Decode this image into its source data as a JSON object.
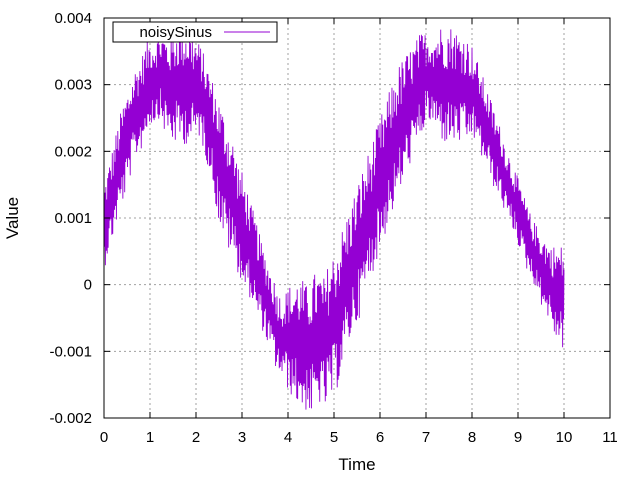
{
  "chart_data": {
    "type": "line",
    "title": "",
    "xlabel": "Time",
    "ylabel": "Value",
    "xlim": [
      0,
      11
    ],
    "ylim": [
      -0.002,
      0.004
    ],
    "x_ticks": [
      0,
      1,
      2,
      3,
      4,
      5,
      6,
      7,
      8,
      9,
      10,
      11
    ],
    "x_tick_labels": [
      "0",
      "1",
      "2",
      "3",
      "4",
      "5",
      "6",
      "7",
      "8",
      "9",
      "10",
      "11"
    ],
    "y_ticks": [
      -0.002,
      -0.001,
      0,
      0.001,
      0.002,
      0.003,
      0.004
    ],
    "y_tick_labels": [
      "-0.002",
      "-0.001",
      "0",
      "0.001",
      "0.002",
      "0.003",
      "0.004"
    ],
    "grid": true,
    "legend": {
      "position": "top-left",
      "entries": [
        "noisySinus"
      ]
    },
    "colors": {
      "series": "#9400d3",
      "grid": "#a0a0a0",
      "axis": "#000000"
    },
    "series": [
      {
        "name": "noisySinus",
        "x": [
          0.0,
          0.1,
          0.2,
          0.3,
          0.4,
          0.5,
          0.6,
          0.7,
          0.8,
          0.9,
          1.0,
          1.1,
          1.2,
          1.3,
          1.4,
          1.5,
          1.6,
          1.7,
          1.8,
          1.9,
          2.0,
          2.1,
          2.2,
          2.3,
          2.4,
          2.5,
          2.6,
          2.7,
          2.8,
          2.9,
          3.0,
          3.1,
          3.2,
          3.3,
          3.4,
          3.5,
          3.6,
          3.7,
          3.8,
          3.9,
          4.0,
          4.1,
          4.2,
          4.3,
          4.4,
          4.5,
          4.6,
          4.7,
          4.8,
          4.9,
          5.0,
          5.1,
          5.2,
          5.3,
          5.4,
          5.5,
          5.6,
          5.7,
          5.8,
          5.9,
          6.0,
          6.1,
          6.2,
          6.3,
          6.4,
          6.5,
          6.6,
          6.7,
          6.8,
          6.9,
          7.0,
          7.1,
          7.2,
          7.3,
          7.4,
          7.5,
          7.6,
          7.7,
          7.8,
          7.9,
          8.0,
          8.1,
          8.2,
          8.3,
          8.4,
          8.5,
          8.6,
          8.7,
          8.8,
          8.9,
          9.0,
          9.1,
          9.2,
          9.3,
          9.4,
          9.5,
          9.6,
          9.7,
          9.8,
          9.9,
          10.0
        ],
        "min": [
          0.0002,
          0.0005,
          0.0007,
          0.001,
          0.0012,
          0.0014,
          0.0017,
          0.0019,
          0.002,
          0.0022,
          0.0024,
          0.0024,
          0.0025,
          0.0023,
          0.0022,
          0.0021,
          0.0021,
          0.0021,
          0.0021,
          0.0021,
          0.0022,
          0.0022,
          0.0019,
          0.0017,
          0.0013,
          0.0009,
          0.0007,
          0.0005,
          0.0004,
          0.0002,
          0.0,
          -0.0002,
          -0.0002,
          -0.0005,
          -0.0006,
          -0.0008,
          -0.001,
          -0.0012,
          -0.0014,
          -0.0014,
          -0.0016,
          -0.0017,
          -0.0018,
          -0.0019,
          -0.0019,
          -0.002,
          -0.0019,
          -0.0018,
          -0.0019,
          -0.0018,
          -0.0017,
          -0.0015,
          -0.0012,
          -0.001,
          -0.0007,
          -0.0006,
          -0.0004,
          -0.0001,
          0.0001,
          0.0003,
          0.0005,
          0.0007,
          0.001,
          0.0011,
          0.0013,
          0.0015,
          0.0017,
          0.0019,
          0.002,
          0.0022,
          0.0024,
          0.0024,
          0.0023,
          0.0022,
          0.0021,
          0.0021,
          0.0021,
          0.0021,
          0.0021,
          0.0021,
          0.0022,
          0.0021,
          0.0019,
          0.0018,
          0.0016,
          0.0014,
          0.0013,
          0.0011,
          0.0009,
          0.0008,
          0.0006,
          0.0004,
          0.0002,
          0.0001,
          -0.0001,
          -0.0003,
          -0.0004,
          -0.0006,
          -0.0008,
          -0.0009,
          -0.001
        ],
        "max": [
          0.0015,
          0.0018,
          0.0021,
          0.0024,
          0.0027,
          0.0029,
          0.0031,
          0.0033,
          0.0034,
          0.0036,
          0.0037,
          0.0037,
          0.0038,
          0.0038,
          0.0037,
          0.0038,
          0.0039,
          0.0039,
          0.0039,
          0.0038,
          0.0037,
          0.0036,
          0.0034,
          0.0032,
          0.003,
          0.0028,
          0.0026,
          0.0024,
          0.0022,
          0.0019,
          0.0017,
          0.0015,
          0.0012,
          0.001,
          0.0007,
          0.0005,
          0.0003,
          0.0001,
          -0.0001,
          -0.0002,
          0.0,
          0.0,
          0.0001,
          0.0001,
          0.0,
          0.0001,
          0.0002,
          0.0002,
          0.0001,
          0.0004,
          0.0005,
          0.0007,
          0.0009,
          0.0011,
          0.0013,
          0.0015,
          0.0017,
          0.0019,
          0.0021,
          0.0023,
          0.0025,
          0.0027,
          0.0029,
          0.0031,
          0.0033,
          0.0034,
          0.0035,
          0.0036,
          0.0037,
          0.0038,
          0.0038,
          0.0038,
          0.0038,
          0.0039,
          0.0039,
          0.0039,
          0.0039,
          0.0038,
          0.0038,
          0.0037,
          0.0036,
          0.0034,
          0.0032,
          0.003,
          0.0028,
          0.0026,
          0.0024,
          0.0022,
          0.002,
          0.0018,
          0.0016,
          0.0014,
          0.0012,
          0.001,
          0.0009,
          0.0008,
          0.0007,
          0.0006,
          0.0006,
          0.0006,
          0.0006
        ]
      }
    ]
  }
}
